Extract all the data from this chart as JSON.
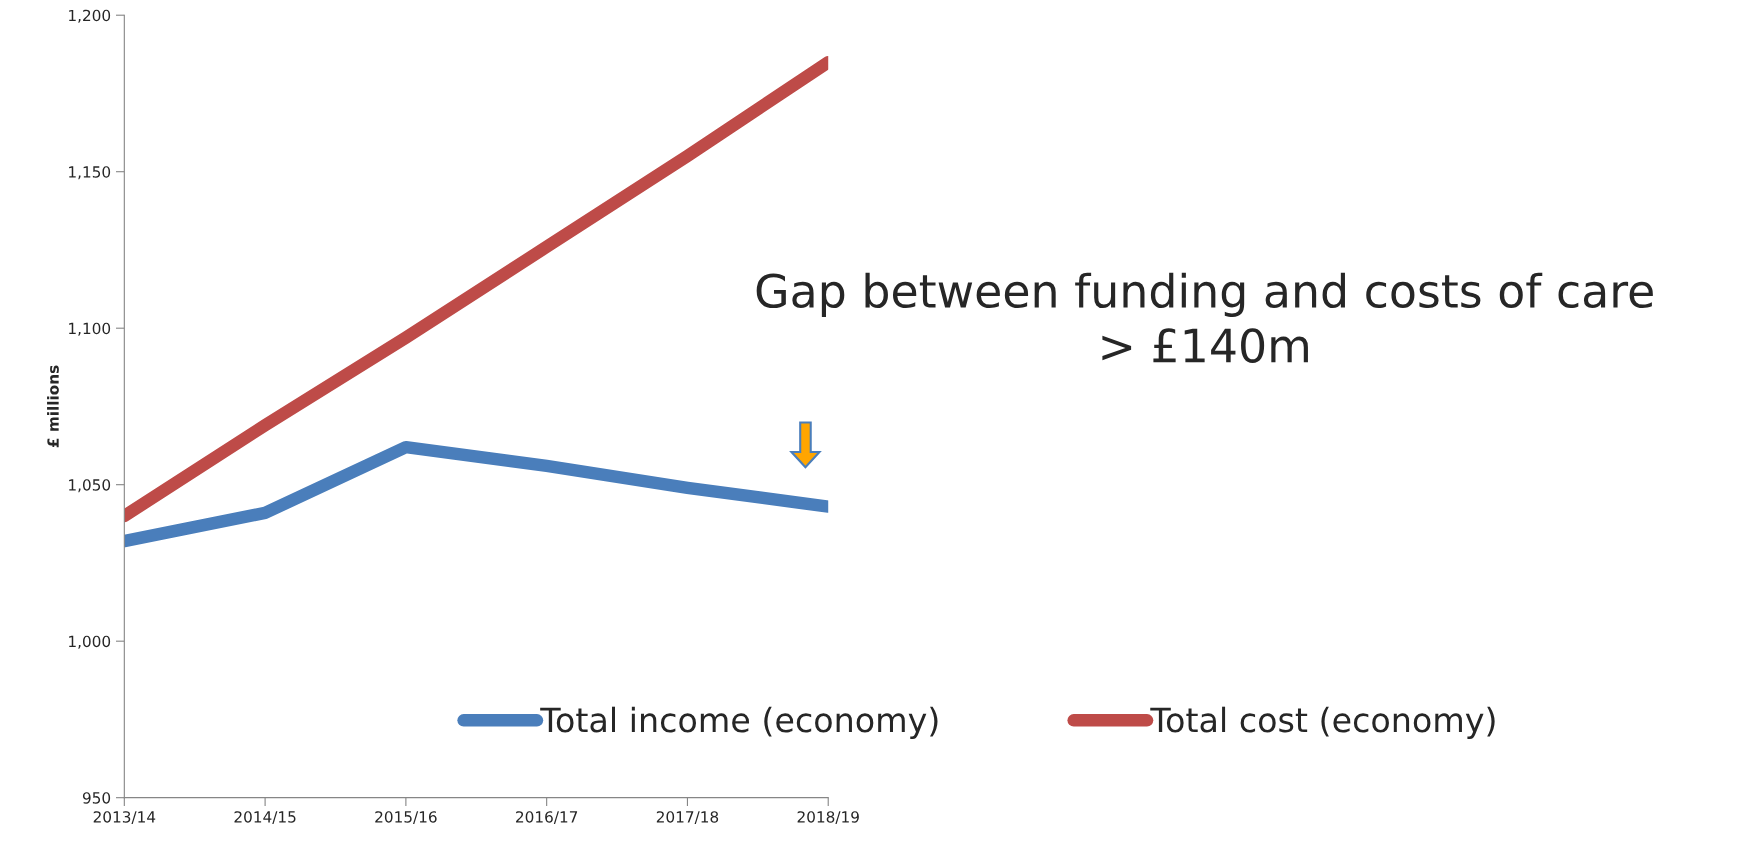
{
  "chart_data": {
    "type": "line",
    "ylabel": "£ millions",
    "categories": [
      "2013/14",
      "2014/15",
      "2015/16",
      "2016/17",
      "2017/18",
      "2018/19"
    ],
    "series": [
      {
        "name": "Total income (economy)",
        "color": "#4a7ebb",
        "values": [
          1032,
          1041,
          1062,
          1056,
          1049,
          1043
        ]
      },
      {
        "name": "Total cost (economy)",
        "color": "#be4b48",
        "values": [
          1040,
          1069,
          1097,
          1126,
          1155,
          1185
        ]
      }
    ],
    "ylim": [
      950,
      1200
    ],
    "yticks": [
      950,
      {
        "value": 1000,
        "label": "1,000"
      },
      {
        "value": 1050,
        "label": "1,050"
      },
      {
        "value": 1100,
        "label": "1,100"
      },
      {
        "value": 1150,
        "label": "1,150"
      },
      {
        "value": 1200,
        "label": "1,200"
      }
    ],
    "annotations": [
      "Gap between funding and costs of care\n> £140m"
    ],
    "legend": "bottom",
    "grid": false,
    "marker": "none",
    "line_style": "solid"
  }
}
